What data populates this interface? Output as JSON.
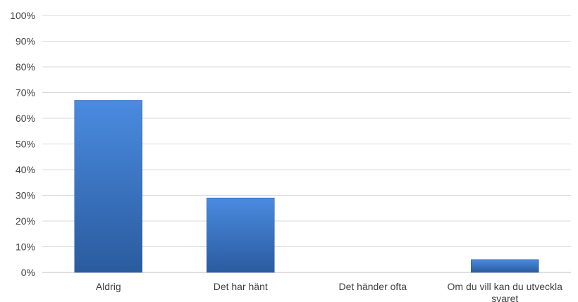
{
  "chart_data": {
    "type": "bar",
    "title": "",
    "xlabel": "",
    "ylabel": "",
    "categories": [
      [
        "Aldrig"
      ],
      [
        "Det har hänt"
      ],
      [
        "Det händer ofta"
      ],
      [
        "Om du vill kan du utveckla",
        "svaret"
      ]
    ],
    "values": [
      67,
      29,
      0,
      5
    ],
    "value_unit": "%",
    "ylim": [
      0,
      100
    ],
    "yticks": [
      "0%",
      "10%",
      "20%",
      "30%",
      "40%",
      "50%",
      "60%",
      "70%",
      "80%",
      "90%",
      "100%"
    ],
    "grid": true,
    "bar_color": "#3F7CD1",
    "bar_color_dark": "#2A5B9E"
  }
}
